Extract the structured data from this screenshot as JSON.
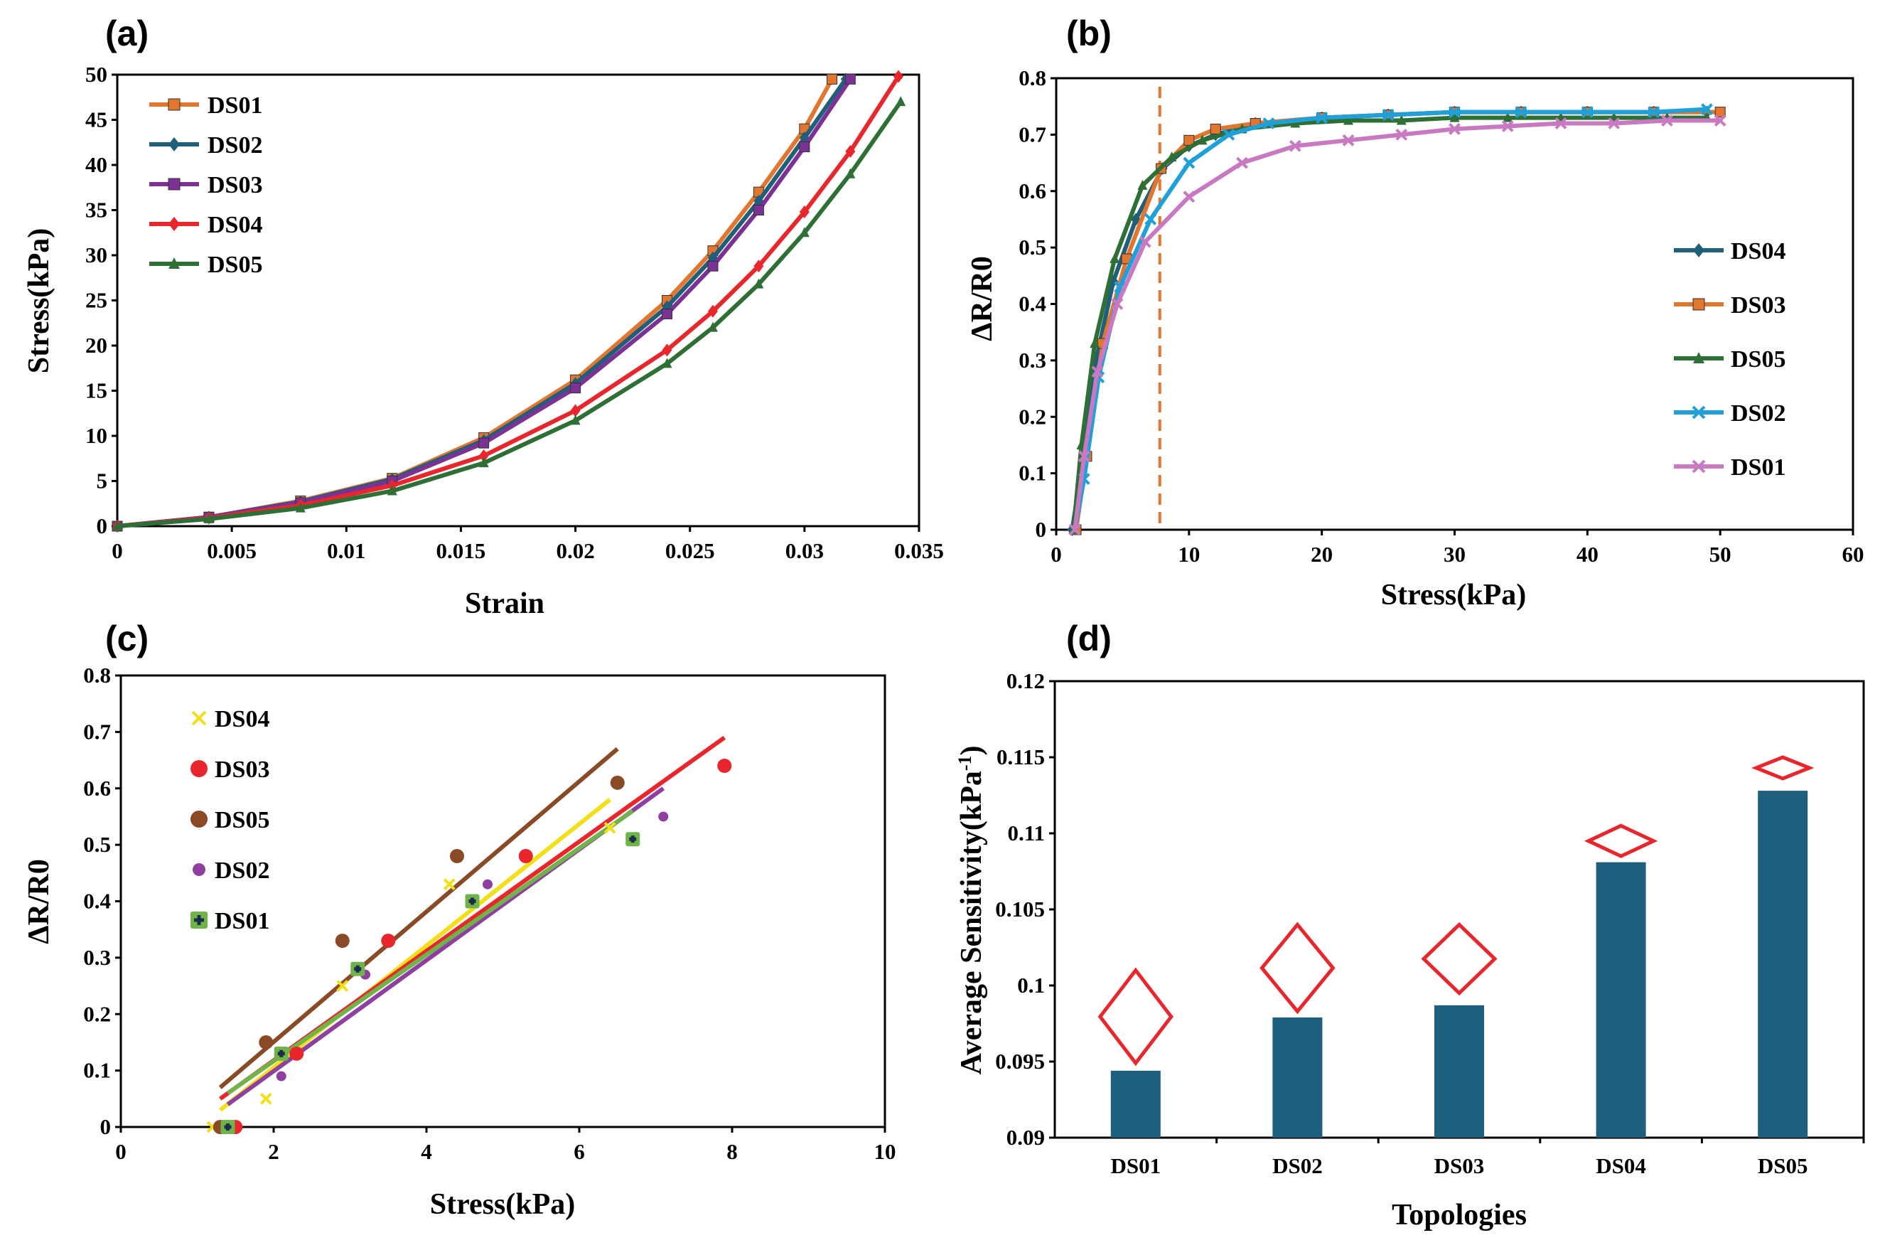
{
  "chart_data": [
    {
      "panel_label": "(a)",
      "type": "line",
      "xlabel": "Strain",
      "ylabel": "Stress(kPa)",
      "xlim": [
        0,
        0.035
      ],
      "ylim": [
        0,
        50
      ],
      "xticks": [
        "0",
        "0.005",
        "0.01",
        "0.015",
        "0.02",
        "0.025",
        "0.03",
        "0.035"
      ],
      "yticks": [
        "0",
        "5",
        "10",
        "15",
        "20",
        "25",
        "30",
        "35",
        "40",
        "45",
        "50"
      ],
      "legend": "top-left",
      "series": [
        {
          "name": "DS01",
          "color": "#e2762f",
          "marker": "square",
          "x": [
            0,
            0.004,
            0.008,
            0.012,
            0.016,
            0.02,
            0.024,
            0.026,
            0.028,
            0.03,
            0.0312
          ],
          "y": [
            0,
            1.0,
            2.8,
            5.3,
            9.8,
            16.2,
            25.0,
            30.5,
            37.0,
            44.0,
            49.5
          ]
        },
        {
          "name": "DS02",
          "color": "#1f5f7a",
          "marker": "diamond",
          "x": [
            0,
            0.004,
            0.008,
            0.012,
            0.016,
            0.02,
            0.024,
            0.026,
            0.028,
            0.03,
            0.0318
          ],
          "y": [
            0,
            1.0,
            2.7,
            5.2,
            9.5,
            15.8,
            24.3,
            29.7,
            36.0,
            43.0,
            49.5
          ]
        },
        {
          "name": "DS03",
          "color": "#7b3294",
          "marker": "square",
          "x": [
            0,
            0.004,
            0.008,
            0.012,
            0.016,
            0.02,
            0.024,
            0.026,
            0.028,
            0.03,
            0.032
          ],
          "y": [
            0,
            1.0,
            2.6,
            5.0,
            9.2,
            15.3,
            23.5,
            28.8,
            35.0,
            42.0,
            49.5
          ]
        },
        {
          "name": "DS04",
          "color": "#e8262b",
          "marker": "diamond",
          "x": [
            0,
            0.004,
            0.008,
            0.012,
            0.016,
            0.02,
            0.024,
            0.026,
            0.028,
            0.03,
            0.032,
            0.0341
          ],
          "y": [
            0,
            0.9,
            2.3,
            4.5,
            7.8,
            12.8,
            19.5,
            23.8,
            28.8,
            34.8,
            41.5,
            49.8
          ]
        },
        {
          "name": "DS05",
          "color": "#2e6f35",
          "marker": "triangle",
          "x": [
            0,
            0.004,
            0.008,
            0.012,
            0.016,
            0.02,
            0.024,
            0.026,
            0.028,
            0.03,
            0.032,
            0.0342
          ],
          "y": [
            0,
            0.8,
            2.0,
            3.9,
            7.0,
            11.7,
            18.0,
            22.0,
            26.8,
            32.5,
            39.0,
            47.0
          ]
        }
      ]
    },
    {
      "panel_label": "(b)",
      "type": "line",
      "xlabel": "Stress(kPa)",
      "ylabel": "ΔR/R0",
      "xlim": [
        0,
        60
      ],
      "ylim": [
        0,
        0.8
      ],
      "xticks": [
        "0",
        "10",
        "20",
        "30",
        "40",
        "50",
        "60"
      ],
      "yticks": [
        "0",
        "0.1",
        "0.2",
        "0.3",
        "0.4",
        "0.5",
        "0.6",
        "0.7",
        "0.8"
      ],
      "legend": "right",
      "annotation": {
        "type": "dashed-vertical-line",
        "x": 7.8,
        "color": "#e2762f"
      },
      "series": [
        {
          "name": "DS04",
          "color": "#1f5f7a",
          "marker": "diamond",
          "x": [
            1.2,
            2,
            3,
            4.3,
            6,
            8,
            10,
            12,
            15,
            20,
            25,
            30,
            35,
            40,
            45,
            49
          ],
          "y": [
            0,
            0.12,
            0.3,
            0.44,
            0.55,
            0.64,
            0.68,
            0.7,
            0.72,
            0.73,
            0.735,
            0.74,
            0.74,
            0.74,
            0.74,
            0.74
          ]
        },
        {
          "name": "DS03",
          "color": "#e2762f",
          "marker": "square",
          "x": [
            1.5,
            2.3,
            3.5,
            5.3,
            7.9,
            10,
            12,
            15,
            20,
            25,
            30,
            35,
            40,
            45,
            50
          ],
          "y": [
            0,
            0.13,
            0.33,
            0.48,
            0.64,
            0.69,
            0.71,
            0.72,
            0.73,
            0.735,
            0.74,
            0.74,
            0.74,
            0.74,
            0.74
          ]
        },
        {
          "name": "DS05",
          "color": "#2e6f35",
          "marker": "triangle",
          "x": [
            1.3,
            1.9,
            2.9,
            4.4,
            6.5,
            8.7,
            11,
            14,
            18,
            22,
            26,
            30,
            34,
            38,
            42,
            46,
            49
          ],
          "y": [
            0,
            0.15,
            0.33,
            0.48,
            0.61,
            0.66,
            0.69,
            0.71,
            0.72,
            0.725,
            0.725,
            0.73,
            0.73,
            0.73,
            0.73,
            0.73,
            0.73
          ]
        },
        {
          "name": "DS02",
          "color": "#1fa0d8",
          "marker": "x",
          "x": [
            1.4,
            2.1,
            3.2,
            4.8,
            7.1,
            10,
            13,
            16,
            20,
            25,
            30,
            35,
            40,
            45,
            49
          ],
          "y": [
            0,
            0.09,
            0.27,
            0.43,
            0.55,
            0.65,
            0.7,
            0.72,
            0.73,
            0.735,
            0.74,
            0.74,
            0.74,
            0.74,
            0.745
          ]
        },
        {
          "name": "DS01",
          "color": "#c879c2",
          "marker": "x",
          "x": [
            1.4,
            2.1,
            3.1,
            4.6,
            6.7,
            10,
            14,
            18,
            22,
            26,
            30,
            34,
            38,
            42,
            46,
            50
          ],
          "y": [
            0,
            0.13,
            0.28,
            0.4,
            0.51,
            0.59,
            0.65,
            0.68,
            0.69,
            0.7,
            0.71,
            0.715,
            0.72,
            0.72,
            0.725,
            0.725
          ]
        }
      ]
    },
    {
      "panel_label": "(c)",
      "type": "scatter",
      "xlabel": "Stress(kPa)",
      "ylabel": "ΔR/R0",
      "xlim": [
        0,
        10
      ],
      "ylim": [
        0,
        0.8
      ],
      "xticks": [
        "0",
        "2",
        "4",
        "6",
        "8",
        "10"
      ],
      "yticks": [
        "0",
        "0.1",
        "0.2",
        "0.3",
        "0.4",
        "0.5",
        "0.6",
        "0.7",
        "0.8"
      ],
      "legend": "top-left",
      "series": [
        {
          "name": "DS04",
          "color": "#f2df1a",
          "marker": "x",
          "x": [
            1.2,
            1.9,
            2.9,
            4.3,
            6.4
          ],
          "y": [
            0,
            0.05,
            0.25,
            0.43,
            0.53
          ],
          "fit": {
            "x": [
              1.3,
              6.4
            ],
            "y": [
              0.03,
              0.58
            ]
          }
        },
        {
          "name": "DS03",
          "color": "#e8262b",
          "marker": "circle",
          "x": [
            1.5,
            2.3,
            3.5,
            5.3,
            7.9
          ],
          "y": [
            0,
            0.13,
            0.33,
            0.48,
            0.64
          ],
          "fit": {
            "x": [
              1.3,
              7.9
            ],
            "y": [
              0.05,
              0.69
            ]
          }
        },
        {
          "name": "DS05",
          "color": "#8b4a26",
          "marker": "circle",
          "x": [
            1.3,
            1.9,
            2.9,
            4.4,
            6.5
          ],
          "y": [
            0,
            0.15,
            0.33,
            0.48,
            0.61
          ],
          "fit": {
            "x": [
              1.3,
              6.5
            ],
            "y": [
              0.07,
              0.67
            ]
          }
        },
        {
          "name": "DS02",
          "color": "#8e3fa0",
          "marker": "circle-small",
          "x": [
            1.4,
            2.1,
            3.2,
            4.8,
            7.1
          ],
          "y": [
            0,
            0.09,
            0.27,
            0.43,
            0.55
          ],
          "fit": {
            "x": [
              1.4,
              7.1
            ],
            "y": [
              0.04,
              0.6
            ]
          }
        },
        {
          "name": "DS01",
          "color": "#6fb34a",
          "marker": "square-cross",
          "x": [
            1.4,
            2.1,
            3.1,
            4.6,
            6.7
          ],
          "y": [
            0,
            0.13,
            0.28,
            0.4,
            0.51
          ],
          "fit": {
            "x": [
              1.4,
              6.7
            ],
            "y": [
              0.06,
              0.56
            ]
          }
        }
      ]
    },
    {
      "panel_label": "(d)",
      "type": "bar",
      "xlabel": "Topologies",
      "ylabel": "Average Sensitivity(kPa",
      "ylabel_superscript": "-1",
      "ylabel_suffix": ")",
      "ylim": [
        0.09,
        0.12
      ],
      "yticks": [
        "0.09",
        "0.095",
        "0.1",
        "0.105",
        "0.11",
        "0.115",
        "0.12"
      ],
      "categories": [
        "DS01",
        "DS02",
        "DS03",
        "DS04",
        "DS05"
      ],
      "values": [
        0.0944,
        0.0979,
        0.0987,
        0.1081,
        0.1128
      ],
      "bar_color": "#1f5f7e",
      "error_markers": {
        "type": "diamond",
        "color": "#e8262b",
        "low": [
          0.0949,
          0.0983,
          0.0995,
          0.1085,
          0.1136
        ],
        "high": [
          0.101,
          0.104,
          0.104,
          0.1105,
          0.115
        ]
      }
    }
  ]
}
